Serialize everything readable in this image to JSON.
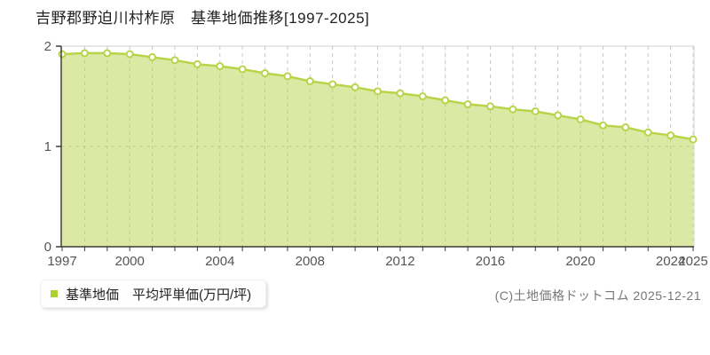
{
  "page": {
    "title": "吉野郡野迫川村柞原　基準地価推移[1997-2025]",
    "copyright": "(C)土地価格ドットコム 2025-12-21"
  },
  "legend": {
    "label": "基準地価　平均坪単価(万円/坪)",
    "marker_color": "#a9d32a"
  },
  "chart_data": {
    "type": "area",
    "title": "吉野郡野迫川村柞原 基準地価推移[1997-2025]",
    "x": [
      1997,
      1998,
      1999,
      2000,
      2001,
      2002,
      2003,
      2004,
      2005,
      2006,
      2007,
      2008,
      2009,
      2010,
      2011,
      2012,
      2013,
      2014,
      2015,
      2016,
      2017,
      2018,
      2019,
      2020,
      2021,
      2022,
      2023,
      2024,
      2025
    ],
    "series": [
      {
        "name": "基準地価 平均坪単価(万円/坪)",
        "values": [
          1.92,
          1.93,
          1.93,
          1.92,
          1.89,
          1.86,
          1.82,
          1.8,
          1.77,
          1.73,
          1.7,
          1.65,
          1.62,
          1.59,
          1.55,
          1.53,
          1.5,
          1.46,
          1.42,
          1.4,
          1.37,
          1.35,
          1.31,
          1.27,
          1.21,
          1.19,
          1.14,
          1.11,
          1.07
        ]
      }
    ],
    "xlabel": "",
    "ylabel": "平均坪単価(万円/坪)",
    "ylim": [
      0,
      2
    ],
    "yticks": [
      0,
      1,
      2
    ],
    "xticks": [
      1997,
      2000,
      2004,
      2008,
      2012,
      2016,
      2020,
      2024,
      2025
    ],
    "grid": {
      "vertical": "dashed at every year",
      "horizontal": "dashed at y=1"
    },
    "legend_position": "bottom-left",
    "colors": {
      "line": "#b9d44a",
      "fill": "#b9d44a",
      "fill_opacity": 0.5,
      "marker_fill": "#ffffff",
      "marker_stroke": "#b9d44a",
      "grid": "#c8c8c8",
      "axis": "#3a3a3a",
      "plot_border": "#e0e0e0",
      "tick_text": "#555555"
    }
  }
}
